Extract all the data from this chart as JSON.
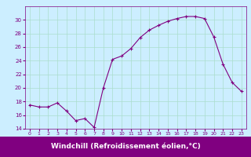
{
  "x": [
    0,
    1,
    2,
    3,
    4,
    5,
    6,
    7,
    8,
    9,
    10,
    11,
    12,
    13,
    14,
    15,
    16,
    17,
    18,
    19,
    20,
    21,
    22,
    23
  ],
  "y": [
    17.5,
    17.2,
    17.2,
    17.8,
    16.6,
    15.2,
    15.5,
    14.2,
    20.0,
    24.2,
    24.7,
    25.8,
    27.4,
    28.5,
    29.2,
    29.8,
    30.2,
    30.5,
    30.5,
    30.2,
    27.5,
    23.5,
    20.8,
    19.5
  ],
  "line_color": "#800080",
  "marker_color": "#800080",
  "bg_color": "#cceeff",
  "grid_color": "#aaddcc",
  "xlabel": "Windchill (Refroidissement éolien,°C)",
  "ylim": [
    14,
    32
  ],
  "xlim": [
    -0.5,
    23.5
  ],
  "yticks": [
    14,
    16,
    18,
    20,
    22,
    24,
    26,
    28,
    30
  ],
  "xticks": [
    0,
    1,
    2,
    3,
    4,
    5,
    6,
    7,
    8,
    9,
    10,
    11,
    12,
    13,
    14,
    15,
    16,
    17,
    18,
    19,
    20,
    21,
    22,
    23
  ],
  "xlabel_color": "#ffffff",
  "xlabel_bg": "#800080",
  "tick_label_color": "#800080",
  "axis_color": "#800080",
  "ytick_labels": [
    "14",
    "16",
    "18",
    "20",
    "22",
    "24",
    "26",
    "28",
    "30"
  ]
}
